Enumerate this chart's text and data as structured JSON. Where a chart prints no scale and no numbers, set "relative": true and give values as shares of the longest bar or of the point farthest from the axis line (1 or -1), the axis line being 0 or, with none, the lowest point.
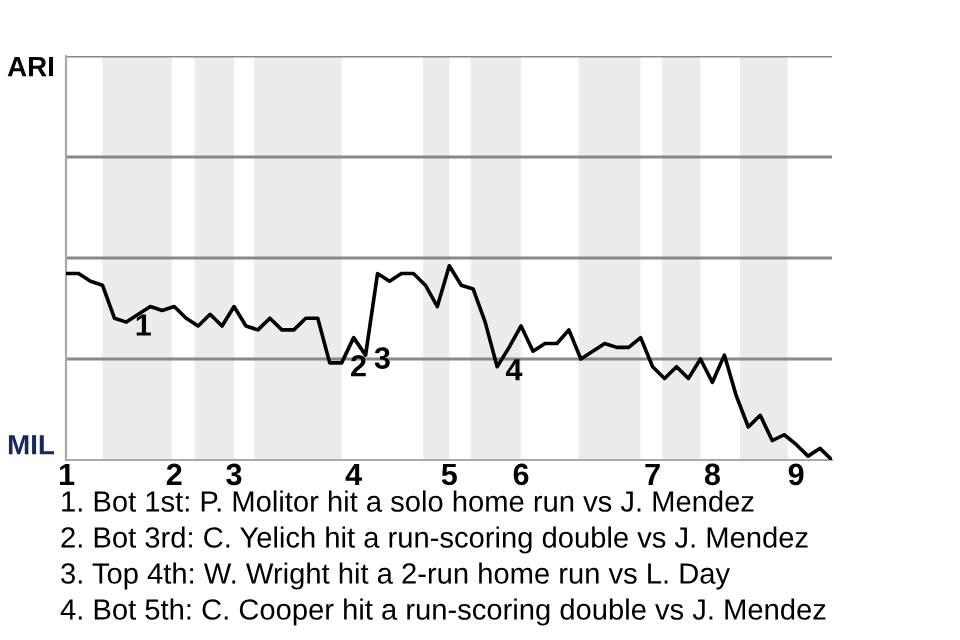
{
  "chart_data": {
    "type": "line",
    "relative": true,
    "categories": [
      "1",
      null,
      null,
      null,
      null,
      null,
      null,
      null,
      null,
      "2",
      null,
      null,
      null,
      null,
      "3",
      null,
      null,
      null,
      null,
      null,
      null,
      null,
      null,
      null,
      "4",
      null,
      null,
      null,
      null,
      null,
      null,
      null,
      "5",
      null,
      null,
      null,
      null,
      null,
      "6",
      null,
      null,
      null,
      null,
      null,
      null,
      null,
      null,
      null,
      null,
      "7",
      null,
      null,
      null,
      null,
      "8",
      null,
      null,
      null,
      null,
      null,
      null,
      "9",
      null,
      null,
      null
    ],
    "series": [
      {
        "color": "#000000",
        "values": [
          0.96,
          0.96,
          0.92,
          0.9,
          0.73,
          0.71,
          0.75,
          0.79,
          0.77,
          0.79,
          0.73,
          0.69,
          0.75,
          0.69,
          0.79,
          0.69,
          0.67,
          0.73,
          0.67,
          0.67,
          0.73,
          0.73,
          0.5,
          0.5,
          0.63,
          0.54,
          0.96,
          0.92,
          0.96,
          0.96,
          0.9,
          0.79,
          1,
          0.9,
          0.88,
          0.71,
          0.48,
          0.58,
          0.69,
          0.56,
          0.6,
          0.6,
          0.67,
          0.52,
          0.56,
          0.6,
          0.58,
          0.58,
          0.63,
          0.48,
          0.42,
          0.48,
          0.42,
          0.52,
          0.4,
          0.54,
          0.33,
          0.17,
          0.23,
          0.1,
          0.13,
          0.08,
          0.02,
          0.06,
          0
        ]
      }
    ],
    "ref_lines": [
      {
        "axis": "y",
        "value": 0.52,
        "color": "#888888"
      },
      {
        "axis": "y",
        "value": 1.04,
        "color": "#888888"
      },
      {
        "axis": "y",
        "value": 1.56,
        "color": "#888888"
      },
      {
        "axis": "y",
        "value": 2.08,
        "color": "#888888"
      }
    ],
    "annotations": [
      "ARI",
      "MIL",
      {
        "text": "1",
        "y": 0.71
      },
      {
        "text": "2",
        "y": 0.5
      },
      {
        "text": "3",
        "y": 0.54
      },
      {
        "text": "4",
        "y": 0.48
      },
      "1. Bot 1st: P. Molitor hit a solo home run vs J. Mendez",
      "2. Bot 3rd: C. Yelich hit a run-scoring double vs J. Mendez",
      "3. Top 4th: W. Wright hit a 2-run home run vs L. Day",
      "4. Bot 5th: C. Cooper hit a run-scoring double vs J. Mendez"
    ]
  }
}
